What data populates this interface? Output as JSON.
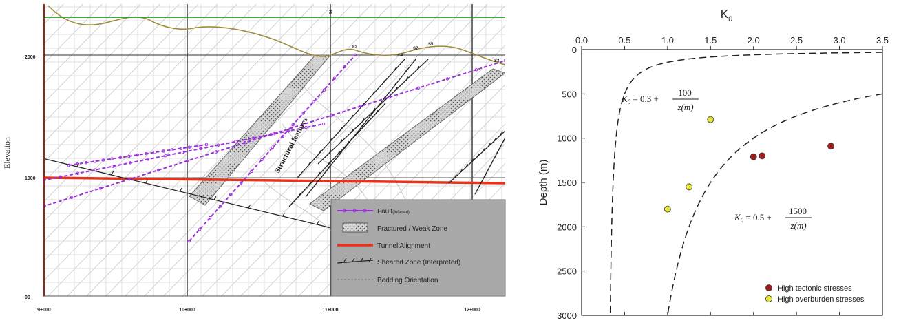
{
  "left_section": {
    "y_axis_label": "Elevation",
    "y_ticks": [
      "2000",
      "1000",
      "00"
    ],
    "x_ticks": [
      "9+000",
      "10+000",
      "11+000",
      "12+000"
    ],
    "top_marker": "3",
    "structural_label": "Structural features",
    "fault_labels": [
      "F2",
      "S4",
      "S7",
      "S5",
      "S3"
    ],
    "legend": [
      {
        "key": "fault",
        "label": "Fault",
        "sublabel": "(Inferred)",
        "color": "#9b30d9"
      },
      {
        "key": "weak",
        "label": "Fractured / Weak Zone",
        "color": "#8a8a8a"
      },
      {
        "key": "tunnel",
        "label": "Tunnel Alignment",
        "color": "#e8321c"
      },
      {
        "key": "sheared",
        "label": "Sheared Zone (Interpreted)",
        "color": "#222222"
      },
      {
        "key": "bedding",
        "label": "Bedding Orientation",
        "color": "#9a9a9a"
      }
    ],
    "colors": {
      "ground_surface": "#a08a3c",
      "top_line": "#2e9a2e",
      "tunnel": "#e8321c",
      "fault": "#9b30d9",
      "legend_bg": "#a8a8a8"
    }
  },
  "chart_data": {
    "type": "scatter",
    "title": "K0",
    "xlabel": "",
    "ylabel": "Depth (m)",
    "xlim": [
      0,
      3.5
    ],
    "ylim": [
      0,
      3000
    ],
    "y_inverted": true,
    "x_axis_position": "top",
    "x_ticks": [
      "0.0",
      "0.5",
      "1.0",
      "1.5",
      "2.0",
      "2.5",
      "3.0",
      "3.5"
    ],
    "y_ticks": [
      "0",
      "500",
      "1000",
      "1500",
      "2000",
      "2500",
      "3000"
    ],
    "curves": [
      {
        "equation": "K0 = 0.3 + 100/z(m)",
        "a": 0.3,
        "b": 100
      },
      {
        "equation": "K0 = 0.5 + 1500/z(m)",
        "a": 0.5,
        "b": 1500
      }
    ],
    "series": [
      {
        "name": "High tectonic stresses",
        "color": "#a01c1c",
        "points": [
          [
            2.0,
            1210
          ],
          [
            2.1,
            1200
          ],
          [
            2.9,
            1090
          ]
        ]
      },
      {
        "name": "High overburden stresses",
        "color": "#e6e63a",
        "points": [
          [
            1.5,
            790
          ],
          [
            1.25,
            1550
          ],
          [
            1.0,
            1800
          ]
        ]
      }
    ],
    "legend_position": "bottom-right",
    "grid": false
  }
}
